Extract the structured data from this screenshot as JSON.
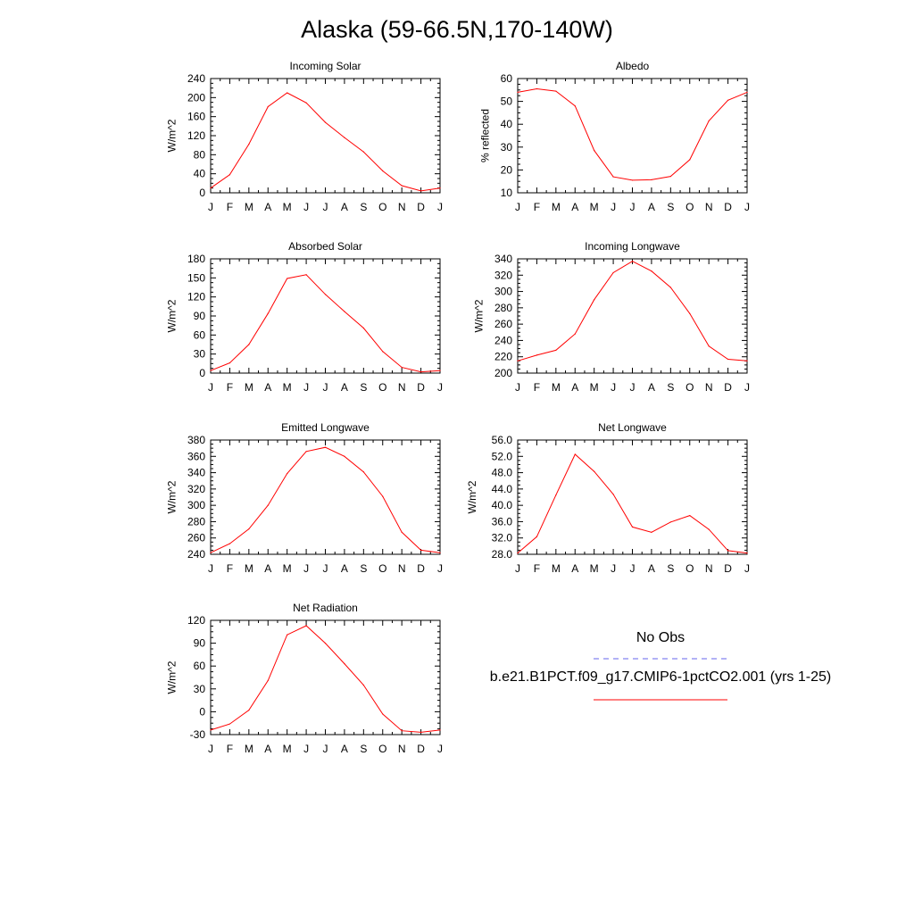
{
  "title": "Alaska (59-66.5N,170-140W)",
  "month_labels": [
    "J",
    "F",
    "M",
    "A",
    "M",
    "J",
    "J",
    "A",
    "S",
    "O",
    "N",
    "D",
    "J"
  ],
  "legend": {
    "entries": [
      {
        "label": "No Obs",
        "color": "#6666ee",
        "dash": "dashed"
      },
      {
        "label": "b.e21.B1PCT.f09_g17.CMIP6-1pctCO2.001 (yrs 1-25)",
        "color": "#ff0000",
        "dash": "solid"
      }
    ]
  },
  "chart_data": [
    {
      "type": "line",
      "title": "Incoming Solar",
      "ylabel": "W/m^2",
      "ylim": [
        0,
        240
      ],
      "yticks": [
        "0",
        "40",
        "80",
        "120",
        "160",
        "200",
        "240"
      ],
      "categories": [
        "J",
        "F",
        "M",
        "A",
        "M",
        "J",
        "J",
        "A",
        "S",
        "O",
        "N",
        "D",
        "J"
      ],
      "series": [
        {
          "color": "#ff0000",
          "values": [
            10,
            38,
            102,
            181,
            210,
            189,
            148,
            116,
            86,
            46,
            15,
            4,
            10
          ]
        }
      ]
    },
    {
      "type": "line",
      "title": "Albedo",
      "ylabel": "% reflected",
      "ylim": [
        10,
        60
      ],
      "yticks": [
        "10",
        "20",
        "30",
        "40",
        "50",
        "60"
      ],
      "categories": [
        "J",
        "F",
        "M",
        "A",
        "M",
        "J",
        "J",
        "A",
        "S",
        "O",
        "N",
        "D",
        "J"
      ],
      "series": [
        {
          "color": "#ff0000",
          "values": [
            54,
            55.5,
            54.5,
            48,
            28.5,
            17,
            15.5,
            15.7,
            17.2,
            24.5,
            41.5,
            50.5,
            54
          ]
        }
      ]
    },
    {
      "type": "line",
      "title": "Absorbed Solar",
      "ylabel": "W/m^2",
      "ylim": [
        0,
        180
      ],
      "yticks": [
        "0",
        "30",
        "60",
        "90",
        "120",
        "150",
        "180"
      ],
      "categories": [
        "J",
        "F",
        "M",
        "A",
        "M",
        "J",
        "J",
        "A",
        "S",
        "O",
        "N",
        "D",
        "J"
      ],
      "series": [
        {
          "color": "#ff0000",
          "values": [
            4,
            16,
            45,
            94,
            149,
            155,
            124,
            97,
            71,
            34,
            9,
            2,
            4
          ]
        }
      ]
    },
    {
      "type": "line",
      "title": "Incoming Longwave",
      "ylabel": "W/m^2",
      "ylim": [
        200,
        340
      ],
      "yticks": [
        "200",
        "220",
        "240",
        "260",
        "280",
        "300",
        "320",
        "340"
      ],
      "categories": [
        "J",
        "F",
        "M",
        "A",
        "M",
        "J",
        "J",
        "A",
        "S",
        "O",
        "N",
        "D",
        "J"
      ],
      "series": [
        {
          "color": "#ff0000",
          "values": [
            215,
            222,
            228,
            248,
            290,
            323,
            337,
            325,
            305,
            273,
            233,
            217,
            215
          ]
        }
      ]
    },
    {
      "type": "line",
      "title": "Emitted Longwave",
      "ylabel": "W/m^2",
      "ylim": [
        240,
        380
      ],
      "yticks": [
        "240",
        "260",
        "280",
        "300",
        "320",
        "340",
        "360",
        "380"
      ],
      "categories": [
        "J",
        "F",
        "M",
        "A",
        "M",
        "J",
        "J",
        "A",
        "S",
        "O",
        "N",
        "D",
        "J"
      ],
      "series": [
        {
          "color": "#ff0000",
          "values": [
            242,
            253,
            271,
            300,
            339,
            366,
            371,
            360,
            341,
            311,
            267,
            245,
            242
          ]
        }
      ]
    },
    {
      "type": "line",
      "title": "Net Longwave",
      "ylabel": "W/m^2",
      "ylim": [
        28,
        56
      ],
      "yticks": [
        "28.0",
        "32.0",
        "36.0",
        "40.0",
        "44.0",
        "48.0",
        "52.0",
        "56.0"
      ],
      "categories": [
        "J",
        "F",
        "M",
        "A",
        "M",
        "J",
        "J",
        "A",
        "S",
        "O",
        "N",
        "D",
        "J"
      ],
      "series": [
        {
          "color": "#ff0000",
          "values": [
            28.3,
            32.3,
            42.5,
            52.5,
            48.3,
            42.7,
            34.7,
            33.4,
            35.9,
            37.5,
            34.1,
            28.9,
            28.3
          ]
        }
      ]
    },
    {
      "type": "line",
      "title": "Net Radiation",
      "ylabel": "W/m^2",
      "ylim": [
        -30,
        120
      ],
      "yticks": [
        "-30",
        "0",
        "30",
        "60",
        "90",
        "120"
      ],
      "categories": [
        "J",
        "F",
        "M",
        "A",
        "M",
        "J",
        "J",
        "A",
        "S",
        "O",
        "N",
        "D",
        "J"
      ],
      "series": [
        {
          "color": "#ff0000",
          "values": [
            -24,
            -16,
            2,
            41,
            101,
            113,
            90,
            63,
            35,
            -3,
            -25,
            -27,
            -24
          ]
        }
      ]
    }
  ]
}
